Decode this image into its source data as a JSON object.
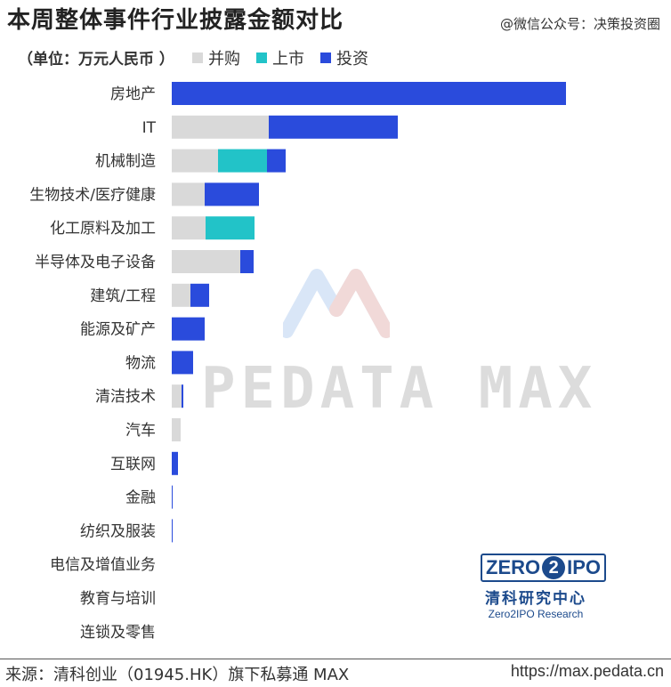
{
  "header": {
    "title": "本周整体事件行业披露金额对比",
    "subtitle": "（单位：万元人民币 ）",
    "wechat": "@微信公众号：决策投资圈"
  },
  "footer": {
    "source": "来源：清科创业（01945.HK）旗下私募通 MAX",
    "url": "https://max.pedata.cn"
  },
  "watermark": {
    "text": "PEDATA MAX"
  },
  "logo": {
    "brand_left": "ZERO",
    "brand_mid": "2",
    "brand_right": "IPO",
    "cn": "清科研究中心",
    "en": "Zero2IPO Research"
  },
  "colors": {
    "merger": "#d9d9d9",
    "ipo": "#22c3c8",
    "investment": "#2a4bdc"
  },
  "chart_data": {
    "type": "bar",
    "orientation": "horizontal",
    "stacked": true,
    "title": "本周整体事件行业披露金额对比",
    "unit": "万元人民币",
    "legend_position": "top",
    "grid": false,
    "categories": [
      "房地产",
      "IT",
      "机械制造",
      "生物技术/医疗健康",
      "化工原料及加工",
      "半导体及电子设备",
      "建筑/工程",
      "能源及矿产",
      "物流",
      "清洁技术",
      "汽车",
      "互联网",
      "金融",
      "纺织及服装",
      "电信及增值业务",
      "教育与培训",
      "连锁及零售"
    ],
    "series": [
      {
        "name": "并购",
        "color": "#d9d9d9",
        "values": [
          0,
          109,
          52,
          37,
          38,
          77,
          21,
          0,
          0,
          11,
          10,
          0,
          0,
          0,
          0,
          0,
          0
        ]
      },
      {
        "name": "上市",
        "color": "#22c3c8",
        "values": [
          0,
          0,
          55,
          0,
          55,
          0,
          0,
          0,
          0,
          0,
          0,
          0,
          0,
          0,
          0,
          0,
          0
        ]
      },
      {
        "name": "投资",
        "color": "#2a4bdc",
        "values": [
          443,
          145,
          21,
          61,
          0,
          15,
          21,
          37,
          24,
          2,
          0,
          7,
          1,
          1,
          0,
          0,
          0
        ]
      }
    ],
    "xlim": [
      0,
      443
    ]
  }
}
